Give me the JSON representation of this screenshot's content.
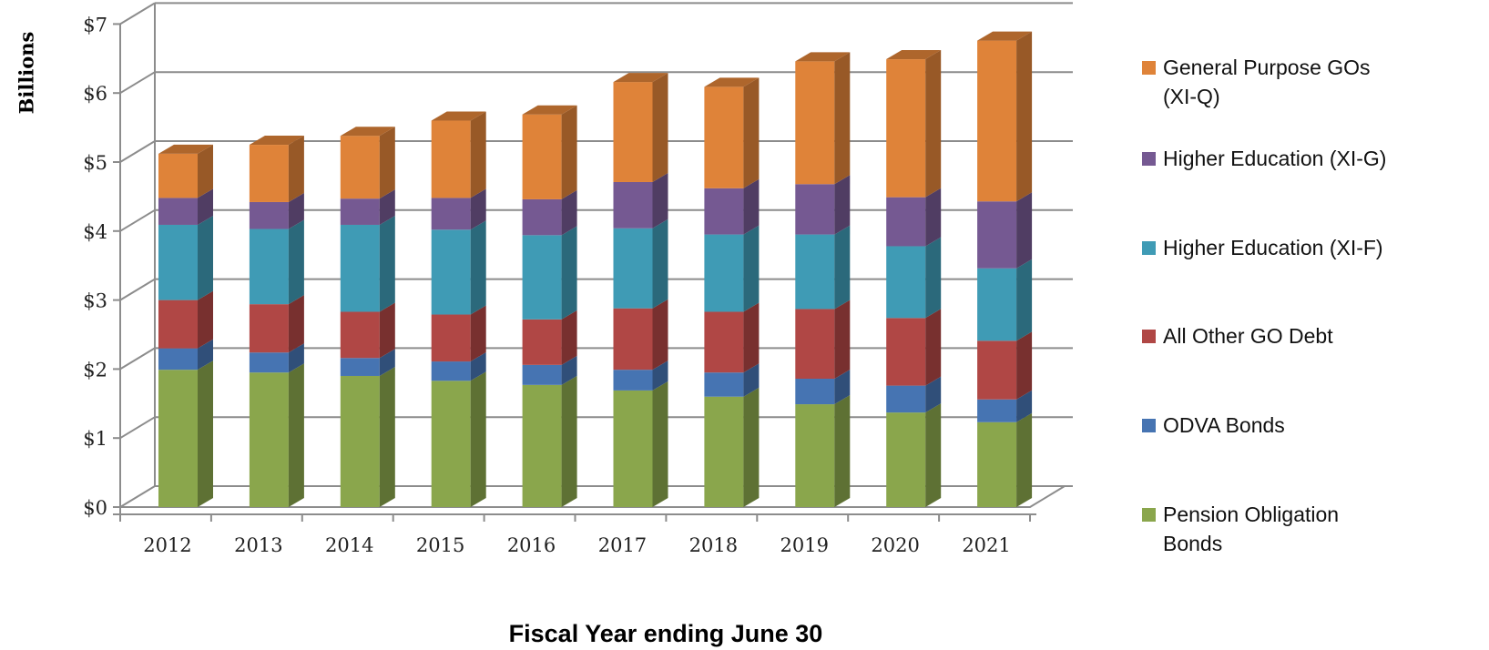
{
  "chart_data": {
    "type": "bar",
    "stacked": true,
    "style": "3d",
    "title": "",
    "xlabel": "Fiscal Year ending June 30",
    "ylabel": "Billions",
    "ylim": [
      0,
      7
    ],
    "yticks": [
      "$0",
      "$1",
      "$2",
      "$3",
      "$4",
      "$5",
      "$6",
      "$7"
    ],
    "grid": true,
    "legend_position": "right",
    "categories": [
      "2012",
      "2013",
      "2014",
      "2015",
      "2016",
      "2017",
      "2018",
      "2019",
      "2020",
      "2021"
    ],
    "series": [
      {
        "name": "Pension Obligation Bonds",
        "color": "#8aa64c",
        "values": [
          1.99,
          1.95,
          1.9,
          1.83,
          1.77,
          1.69,
          1.6,
          1.49,
          1.37,
          1.23
        ]
      },
      {
        "name": "ODVA Bonds",
        "color": "#4674b2",
        "values": [
          0.31,
          0.29,
          0.26,
          0.28,
          0.29,
          0.3,
          0.35,
          0.37,
          0.39,
          0.33
        ]
      },
      {
        "name": "All Other GO Debt",
        "color": "#b04745",
        "values": [
          0.7,
          0.7,
          0.67,
          0.68,
          0.66,
          0.89,
          0.88,
          1.01,
          0.98,
          0.85
        ]
      },
      {
        "name": "Higher Education (XI-F)",
        "color": "#3f9bb5",
        "values": [
          1.09,
          1.09,
          1.26,
          1.23,
          1.22,
          1.16,
          1.12,
          1.08,
          1.04,
          1.05
        ]
      },
      {
        "name": "Higher Education (XI-G)",
        "color": "#755992",
        "values": [
          0.39,
          0.39,
          0.38,
          0.46,
          0.52,
          0.67,
          0.67,
          0.73,
          0.71,
          0.97
        ]
      },
      {
        "name": "General Purpose GOs (XI-Q)",
        "color": "#df8339",
        "values": [
          0.64,
          0.83,
          0.91,
          1.12,
          1.23,
          1.45,
          1.47,
          1.78,
          2.0,
          2.33
        ]
      }
    ],
    "legend": [
      {
        "lines": [
          "General Purpose GOs",
          "(XI-Q)"
        ],
        "color": "#df8339"
      },
      {
        "lines": [
          "Higher Education (XI-G)"
        ],
        "color": "#755992"
      },
      {
        "lines": [
          "Higher Education (XI-F)"
        ],
        "color": "#3f9bb5"
      },
      {
        "lines": [
          "All Other GO Debt"
        ],
        "color": "#b04745"
      },
      {
        "lines": [
          "ODVA Bonds"
        ],
        "color": "#4674b2"
      },
      {
        "lines": [
          "Pension Obligation",
          "Bonds"
        ],
        "color": "#8aa64c"
      }
    ]
  }
}
